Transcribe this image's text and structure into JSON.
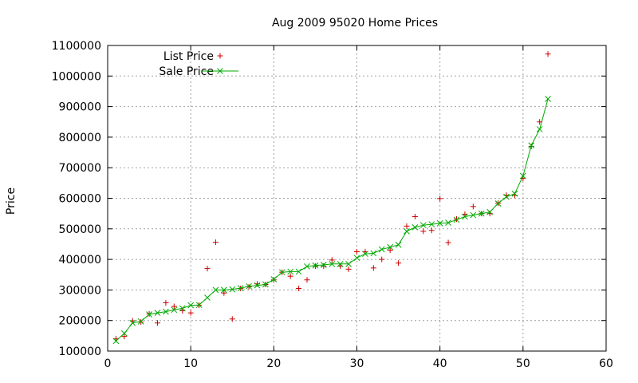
{
  "chart_data": {
    "type": "scatter",
    "title": "Aug 2009 95020 Home Prices",
    "xlabel": "",
    "ylabel": "Price",
    "xlim": [
      0,
      60
    ],
    "ylim": [
      100000,
      1100000
    ],
    "xticks": [
      0,
      10,
      20,
      30,
      40,
      50,
      60
    ],
    "yticks": [
      100000,
      200000,
      300000,
      400000,
      500000,
      600000,
      700000,
      800000,
      900000,
      1000000,
      1100000
    ],
    "grid": true,
    "legend_position": "top-left",
    "series": [
      {
        "name": "List Price",
        "marker": "plus",
        "color": "#cc0000",
        "points": [
          [
            1,
            140000
          ],
          [
            2,
            148000
          ],
          [
            3,
            199000
          ],
          [
            4,
            195000
          ],
          [
            5,
            222000
          ],
          [
            6,
            192000
          ],
          [
            7,
            258000
          ],
          [
            8,
            246000
          ],
          [
            9,
            232000
          ],
          [
            10,
            225000
          ],
          [
            11,
            250000
          ],
          [
            12,
            370000
          ],
          [
            13,
            456000
          ],
          [
            14,
            290000
          ],
          [
            15,
            205000
          ],
          [
            16,
            305000
          ],
          [
            17,
            310000
          ],
          [
            18,
            320000
          ],
          [
            19,
            318000
          ],
          [
            20,
            333000
          ],
          [
            21,
            358000
          ],
          [
            22,
            345000
          ],
          [
            23,
            305000
          ],
          [
            24,
            333000
          ],
          [
            25,
            378000
          ],
          [
            26,
            378000
          ],
          [
            27,
            398000
          ],
          [
            28,
            378000
          ],
          [
            29,
            368000
          ],
          [
            30,
            425000
          ],
          [
            31,
            425000
          ],
          [
            32,
            372000
          ],
          [
            33,
            400000
          ],
          [
            34,
            430000
          ],
          [
            35,
            388000
          ],
          [
            36,
            509000
          ],
          [
            37,
            540000
          ],
          [
            38,
            492000
          ],
          [
            39,
            495000
          ],
          [
            40,
            599000
          ],
          [
            41,
            455000
          ],
          [
            42,
            532000
          ],
          [
            43,
            548000
          ],
          [
            44,
            573000
          ],
          [
            45,
            550000
          ],
          [
            46,
            550000
          ],
          [
            47,
            584000
          ],
          [
            48,
            610000
          ],
          [
            49,
            610000
          ],
          [
            50,
            665000
          ],
          [
            51,
            770000
          ],
          [
            52,
            850000
          ],
          [
            53,
            1072000
          ]
        ]
      },
      {
        "name": "Sale Price",
        "marker": "cross",
        "color": "#00aa00",
        "points": [
          [
            1,
            133000
          ],
          [
            2,
            158000
          ],
          [
            3,
            192000
          ],
          [
            4,
            197000
          ],
          [
            5,
            220000
          ],
          [
            6,
            225000
          ],
          [
            7,
            229000
          ],
          [
            8,
            235000
          ],
          [
            9,
            240000
          ],
          [
            10,
            250000
          ],
          [
            11,
            251000
          ],
          [
            12,
            275000
          ],
          [
            13,
            300000
          ],
          [
            14,
            300000
          ],
          [
            15,
            302000
          ],
          [
            16,
            306000
          ],
          [
            17,
            312000
          ],
          [
            18,
            315000
          ],
          [
            19,
            318000
          ],
          [
            20,
            335000
          ],
          [
            21,
            358000
          ],
          [
            22,
            360000
          ],
          [
            23,
            360000
          ],
          [
            24,
            377000
          ],
          [
            25,
            380000
          ],
          [
            26,
            382000
          ],
          [
            27,
            385000
          ],
          [
            28,
            385000
          ],
          [
            29,
            385000
          ],
          [
            30,
            405000
          ],
          [
            31,
            418000
          ],
          [
            32,
            420000
          ],
          [
            33,
            433000
          ],
          [
            34,
            440000
          ],
          [
            35,
            448000
          ],
          [
            36,
            492000
          ],
          [
            37,
            505000
          ],
          [
            38,
            512000
          ],
          [
            39,
            515000
          ],
          [
            40,
            518000
          ],
          [
            41,
            520000
          ],
          [
            42,
            530000
          ],
          [
            43,
            540000
          ],
          [
            44,
            545000
          ],
          [
            45,
            550000
          ],
          [
            46,
            555000
          ],
          [
            47,
            583000
          ],
          [
            48,
            605000
          ],
          [
            49,
            615000
          ],
          [
            50,
            673000
          ],
          [
            51,
            773000
          ],
          [
            52,
            826000
          ],
          [
            53,
            925000
          ]
        ]
      }
    ]
  }
}
